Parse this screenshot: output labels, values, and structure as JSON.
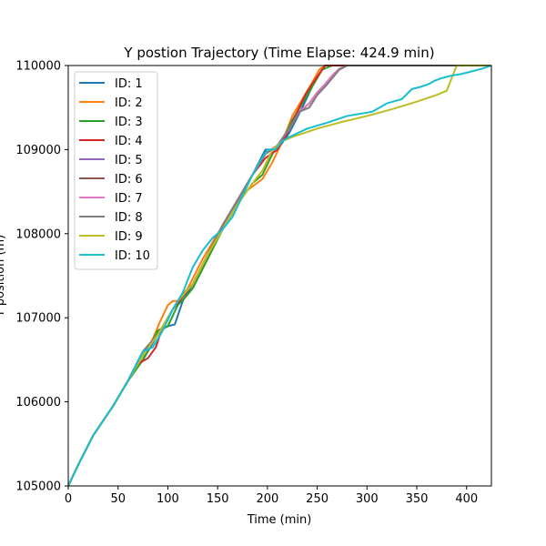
{
  "chart_data": {
    "type": "line",
    "title": "Y postion Trajectory (Time Elapse: 424.9 min)",
    "xlabel": "Time (min)",
    "ylabel": "Y position (m)",
    "xlim": [
      0,
      424.9
    ],
    "ylim": [
      105000,
      110000
    ],
    "xticks": [
      0,
      50,
      100,
      150,
      200,
      250,
      300,
      350,
      400
    ],
    "yticks": [
      105000,
      106000,
      107000,
      108000,
      109000,
      110000
    ],
    "grid": false,
    "legend_position": "upper-left",
    "series": [
      {
        "name": "ID: 1",
        "color": "#1f77b4",
        "x": [
          0,
          10,
          25,
          45,
          60,
          75,
          85,
          92,
          100,
          107,
          115,
          125,
          140,
          155,
          170,
          185,
          198,
          210,
          222,
          235,
          245,
          252,
          258,
          265,
          275,
          285,
          300,
          330,
          380,
          424.9
        ],
        "y": [
          105000,
          105250,
          105600,
          105950,
          106250,
          106500,
          106700,
          106850,
          106900,
          106920,
          107200,
          107400,
          107750,
          108100,
          108400,
          108700,
          109000,
          109000,
          109200,
          109500,
          109750,
          109900,
          110000,
          110000,
          110000,
          110000,
          110000,
          110000,
          110000,
          110000
        ]
      },
      {
        "name": "ID: 2",
        "color": "#ff7f0e",
        "x": [
          0,
          10,
          25,
          45,
          60,
          75,
          85,
          92,
          100,
          105,
          110,
          120,
          135,
          150,
          165,
          178,
          195,
          205,
          215,
          225,
          235,
          245,
          252,
          258,
          265,
          275,
          300,
          350,
          424.9
        ],
        "y": [
          105000,
          105250,
          105600,
          105950,
          106250,
          106550,
          106750,
          106950,
          107150,
          107200,
          107200,
          107350,
          107700,
          108000,
          108300,
          108500,
          108650,
          108850,
          109100,
          109400,
          109600,
          109800,
          109950,
          110000,
          110000,
          110000,
          110000,
          110000,
          110000
        ]
      },
      {
        "name": "ID: 3",
        "color": "#2ca02c",
        "x": [
          0,
          10,
          25,
          45,
          60,
          75,
          90,
          100,
          110,
          118,
          125,
          140,
          155,
          170,
          185,
          195,
          205,
          215,
          225,
          235,
          245,
          255,
          265,
          275,
          300,
          350,
          424.9
        ],
        "y": [
          105000,
          105250,
          105600,
          105950,
          106250,
          106500,
          106850,
          106900,
          107150,
          107250,
          107350,
          107700,
          108050,
          108350,
          108600,
          108700,
          108950,
          109100,
          109350,
          109550,
          109750,
          109950,
          110000,
          110000,
          110000,
          110000,
          110000
        ]
      },
      {
        "name": "ID: 4",
        "color": "#d62728",
        "x": [
          0,
          10,
          25,
          45,
          60,
          70,
          80,
          88,
          95,
          105,
          115,
          125,
          140,
          155,
          170,
          185,
          198,
          210,
          218,
          228,
          238,
          246,
          252,
          258,
          262,
          275,
          300,
          350,
          424.9
        ],
        "y": [
          105000,
          105250,
          105600,
          105950,
          106250,
          106450,
          106520,
          106650,
          106900,
          107100,
          107250,
          107400,
          107750,
          108100,
          108400,
          108700,
          108900,
          109000,
          109150,
          109400,
          109650,
          109800,
          109900,
          110000,
          110000,
          110000,
          110000,
          110000,
          110000
        ]
      },
      {
        "name": "ID: 5",
        "color": "#9467bd",
        "x": [
          0,
          10,
          25,
          45,
          60,
          75,
          90,
          100,
          110,
          125,
          140,
          155,
          170,
          185,
          198,
          210,
          222,
          232,
          242,
          250,
          258,
          265,
          272,
          280,
          300,
          350,
          424.9
        ],
        "y": [
          105000,
          105250,
          105600,
          105950,
          106250,
          106600,
          106800,
          107000,
          107200,
          107400,
          107750,
          108100,
          108400,
          108700,
          108950,
          109050,
          109250,
          109450,
          109500,
          109650,
          109750,
          109850,
          109950,
          110000,
          110000,
          110000,
          110000
        ]
      },
      {
        "name": "ID: 6",
        "color": "#8c564b",
        "x": [
          0,
          10,
          25,
          45,
          60,
          75,
          90,
          100,
          110,
          125,
          140,
          155,
          170,
          185,
          198,
          210,
          222,
          232,
          242,
          250,
          258,
          265,
          272,
          280,
          300,
          350,
          424.9
        ],
        "y": [
          105000,
          105250,
          105600,
          105950,
          106250,
          106600,
          106800,
          107000,
          107200,
          107400,
          107750,
          108100,
          108400,
          108700,
          108950,
          109050,
          109250,
          109450,
          109550,
          109680,
          109780,
          109880,
          109960,
          110000,
          110000,
          110000,
          110000
        ]
      },
      {
        "name": "ID: 7",
        "color": "#e377c2",
        "x": [
          0,
          10,
          25,
          45,
          60,
          75,
          90,
          100,
          110,
          125,
          140,
          155,
          170,
          185,
          198,
          210,
          222,
          232,
          242,
          250,
          258,
          265,
          272,
          280,
          300,
          350,
          424.9
        ],
        "y": [
          105000,
          105250,
          105600,
          105950,
          106250,
          106600,
          106800,
          107000,
          107200,
          107400,
          107750,
          108100,
          108400,
          108700,
          108950,
          109050,
          109250,
          109450,
          109550,
          109680,
          109780,
          109880,
          109960,
          110000,
          110000,
          110000,
          110000
        ]
      },
      {
        "name": "ID: 8",
        "color": "#7f7f7f",
        "x": [
          0,
          10,
          25,
          45,
          60,
          75,
          90,
          100,
          110,
          125,
          140,
          155,
          170,
          185,
          198,
          210,
          222,
          232,
          242,
          250,
          258,
          265,
          272,
          280,
          300,
          350,
          424.9
        ],
        "y": [
          105000,
          105250,
          105600,
          105950,
          106250,
          106600,
          106800,
          107000,
          107200,
          107400,
          107750,
          108100,
          108400,
          108700,
          108950,
          109050,
          109250,
          109450,
          109500,
          109650,
          109750,
          109850,
          109950,
          110000,
          110000,
          110000,
          110000
        ]
      },
      {
        "name": "ID: 9",
        "color": "#bcbd22",
        "x": [
          0,
          10,
          25,
          45,
          60,
          75,
          90,
          100,
          110,
          125,
          140,
          155,
          170,
          185,
          195,
          205,
          215,
          225,
          250,
          275,
          300,
          325,
          350,
          370,
          380,
          385,
          390,
          424.9
        ],
        "y": [
          105000,
          105250,
          105600,
          105950,
          106250,
          106550,
          106800,
          107000,
          107200,
          107400,
          107750,
          108050,
          108350,
          108600,
          108750,
          109000,
          109100,
          109150,
          109250,
          109330,
          109400,
          109480,
          109570,
          109650,
          109700,
          109850,
          110000,
          110000
        ]
      },
      {
        "name": "ID: 10",
        "color": "#17becf",
        "x": [
          0,
          10,
          25,
          45,
          60,
          75,
          85,
          95,
          105,
          115,
          125,
          135,
          145,
          155,
          165,
          175,
          185,
          192,
          200,
          208,
          215,
          222,
          240,
          260,
          280,
          305,
          320,
          335,
          345,
          355,
          362,
          368,
          375,
          385,
          395,
          405,
          415,
          424.9
        ],
        "y": [
          105000,
          105250,
          105600,
          105950,
          106250,
          106600,
          106650,
          106850,
          107100,
          107300,
          107600,
          107800,
          107950,
          108050,
          108200,
          108450,
          108700,
          108850,
          109000,
          109000,
          109100,
          109150,
          109250,
          109320,
          109400,
          109450,
          109550,
          109600,
          109720,
          109750,
          109780,
          109820,
          109850,
          109880,
          109900,
          109930,
          109960,
          110000
        ]
      }
    ]
  }
}
